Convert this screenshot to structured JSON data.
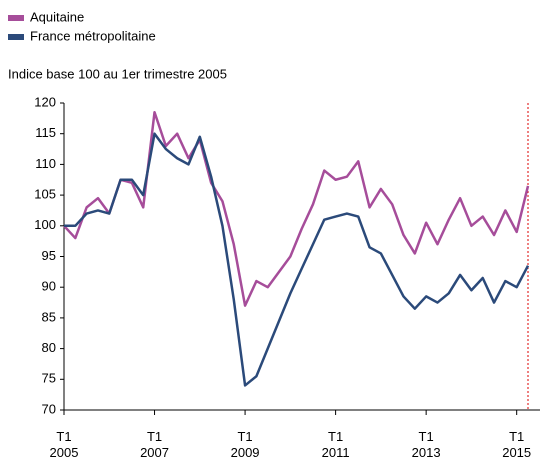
{
  "chart_data": {
    "type": "line",
    "subtitle": "Indice base 100 au 1er trimestre 2005",
    "categories": [
      "T1 2005",
      null,
      null,
      null,
      null,
      null,
      null,
      null,
      "T1 2007",
      null,
      null,
      null,
      null,
      null,
      null,
      null,
      "T1 2009",
      null,
      null,
      null,
      null,
      null,
      null,
      null,
      "T1 2011",
      null,
      null,
      null,
      null,
      null,
      null,
      null,
      "T1 2013",
      null,
      null,
      null,
      null,
      null,
      null,
      null,
      "T1 2015",
      null
    ],
    "series": [
      {
        "name": "Aquitaine",
        "color": "#a64d9a",
        "values": [
          100,
          98,
          103,
          104.5,
          102,
          107.5,
          107,
          103,
          118.5,
          113,
          115,
          111,
          114,
          107,
          104,
          97,
          87,
          91,
          90,
          92.5,
          95,
          99.5,
          103.5,
          109,
          107.5,
          108,
          110.5,
          103,
          106,
          103.5,
          98.5,
          95.5,
          100.5,
          97,
          101,
          104.5,
          100,
          101.5,
          98.5,
          102.5,
          99,
          106.5
        ]
      },
      {
        "name": "France métropolitaine",
        "color": "#2b4a7a",
        "values": [
          100,
          100,
          102,
          102.5,
          102,
          107.5,
          107.5,
          105,
          115,
          112.5,
          111,
          110,
          114.5,
          108,
          100,
          88,
          74,
          75.5,
          80,
          84.5,
          89,
          93,
          97,
          101,
          101.5,
          102,
          101.5,
          96.5,
          95.5,
          92,
          88.5,
          86.5,
          88.5,
          87.5,
          89,
          92,
          89.5,
          91.5,
          87.5,
          91,
          90,
          93.5
        ]
      }
    ],
    "ylim": [
      70,
      120
    ],
    "yticks": [
      70,
      75,
      80,
      85,
      90,
      95,
      100,
      105,
      110,
      115,
      120
    ],
    "grid": false,
    "legend": "top-left"
  }
}
